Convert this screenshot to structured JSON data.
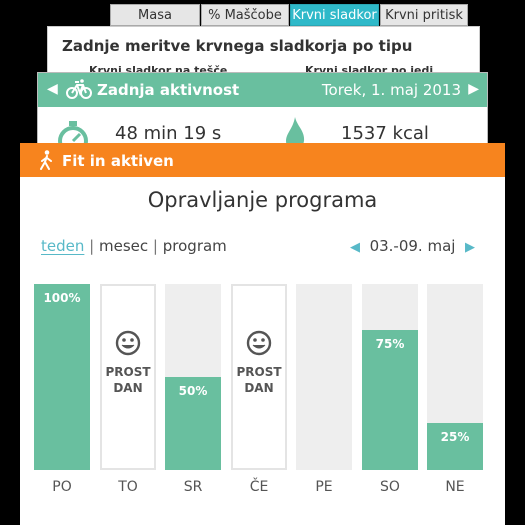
{
  "tabs": [
    {
      "label": "Masa",
      "active": false
    },
    {
      "label": "% Maščobe",
      "active": false
    },
    {
      "label": "Krvni sladkor",
      "active": true
    },
    {
      "label": "Krvni pritisk",
      "active": false
    }
  ],
  "sugar_card": {
    "title": "Zadnje meritve krvnega sladkorja po tipu",
    "col1": "Krvni sladkor na tešče",
    "col2": "Krvni sladkor po jedi"
  },
  "activity_card": {
    "title": "Zadnja aktivnost",
    "date": "Torek, 1. maj 2013",
    "duration": "48 min 19 s",
    "energy": "1537 kcal"
  },
  "main_card": {
    "header": "Fit in aktiven",
    "title": "Opravljanje programa",
    "nav": {
      "week": "teden",
      "month": "mesec",
      "program": "program",
      "sep": "|"
    },
    "week_range": "03.-09. maj",
    "rest_label": [
      "PROST",
      "DAN"
    ]
  },
  "chart_data": {
    "type": "bar",
    "categories": [
      "PO",
      "TO",
      "SR",
      "ČE",
      "PE",
      "SO",
      "NE"
    ],
    "values": [
      100,
      null,
      50,
      null,
      0,
      75,
      25
    ],
    "value_labels": [
      "100%",
      "",
      "50%",
      "",
      "",
      "75%",
      "25%"
    ],
    "rest_days": [
      false,
      true,
      false,
      true,
      false,
      false,
      false
    ],
    "ylim": [
      0,
      100
    ],
    "colors": {
      "fill": "#69bf9f",
      "track": "#eeeeee"
    }
  },
  "colors": {
    "tab_active": "#2fb9c9",
    "activity_header": "#69bf9f",
    "main_header": "#f7841e",
    "link": "#58b9c8"
  }
}
